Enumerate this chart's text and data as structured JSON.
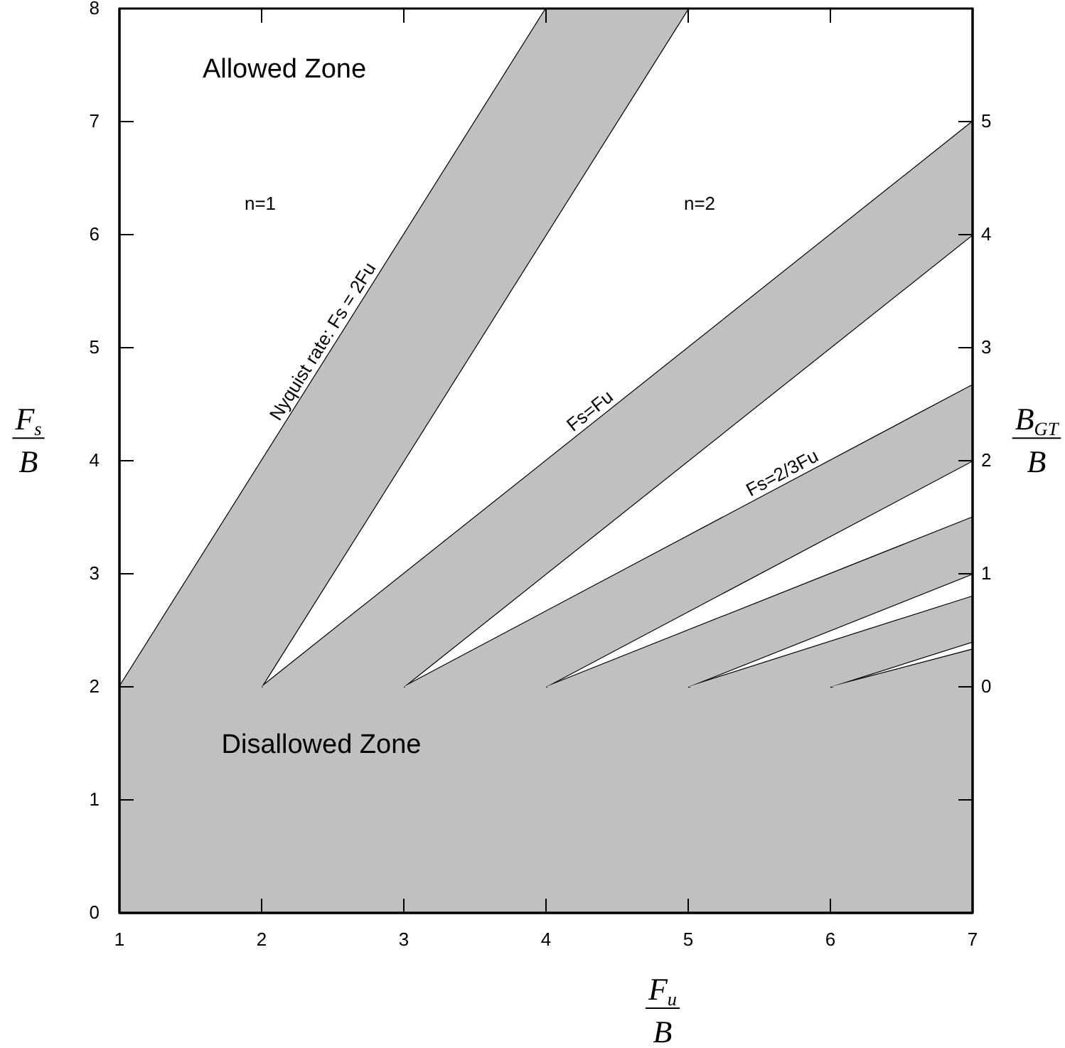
{
  "chart_data": {
    "type": "line",
    "xlabel": "F$_{u}$/B",
    "ylabel": "F$_{s}$/B",
    "y2label": "B$_{GT}$/B",
    "xlim": [
      1,
      7
    ],
    "xticks": [
      1,
      2,
      3,
      4,
      5,
      6,
      7
    ],
    "ylim": [
      0,
      8
    ],
    "yticks": [
      0,
      1,
      2,
      3,
      4,
      5,
      6,
      7,
      8
    ],
    "y2lim": [
      -2,
      6
    ],
    "y2ticks": [
      {
        "value": -1,
        "label": null
      },
      0,
      1,
      2,
      3,
      4,
      5
    ],
    "bands": [
      {
        "axis": "y",
        "from": 0,
        "to": 2,
        "color": "#c0c0c0"
      }
    ],
    "series": [
      {
        "color": "#000000",
        "x": [
          1,
          4
        ],
        "values": [
          2,
          8
        ]
      },
      {
        "color": "#000000",
        "x": [
          2,
          5
        ],
        "values": [
          2,
          8
        ]
      },
      {
        "color": "#000000",
        "x": [
          2,
          7
        ],
        "values": [
          2,
          7
        ]
      },
      {
        "color": "#000000",
        "x": [
          3,
          7
        ],
        "values": [
          2,
          6
        ]
      },
      {
        "color": "#000000",
        "x": [
          3,
          7
        ],
        "values": [
          2,
          4.67
        ]
      },
      {
        "color": "#000000",
        "x": [
          4,
          7
        ],
        "values": [
          2,
          4
        ]
      },
      {
        "color": "#000000",
        "x": [
          4,
          7
        ],
        "values": [
          2,
          3.5
        ]
      },
      {
        "color": "#000000",
        "x": [
          5,
          7
        ],
        "values": [
          2,
          3
        ]
      },
      {
        "color": "#000000",
        "x": [
          5,
          7
        ],
        "values": [
          2,
          2.8
        ]
      },
      {
        "color": "#000000",
        "x": [
          6,
          7
        ],
        "values": [
          2,
          2.4
        ]
      },
      {
        "color": "#000000",
        "x": [
          6,
          7
        ],
        "values": [
          2,
          2.33
        ]
      }
    ],
    "annotations": [
      "Allowed Zone",
      "n=1",
      "n=2",
      "Disallowed Zone",
      {
        "text": "Nyquist rate: Fs = 2Fu",
        "x": 2.5,
        "y": 5
      },
      {
        "text": "Fs=Fu",
        "x": 4.36,
        "y": 4.36
      },
      {
        "text": "Fs=2/3Fu",
        "x": 5.7,
        "y": 3.8
      }
    ]
  }
}
